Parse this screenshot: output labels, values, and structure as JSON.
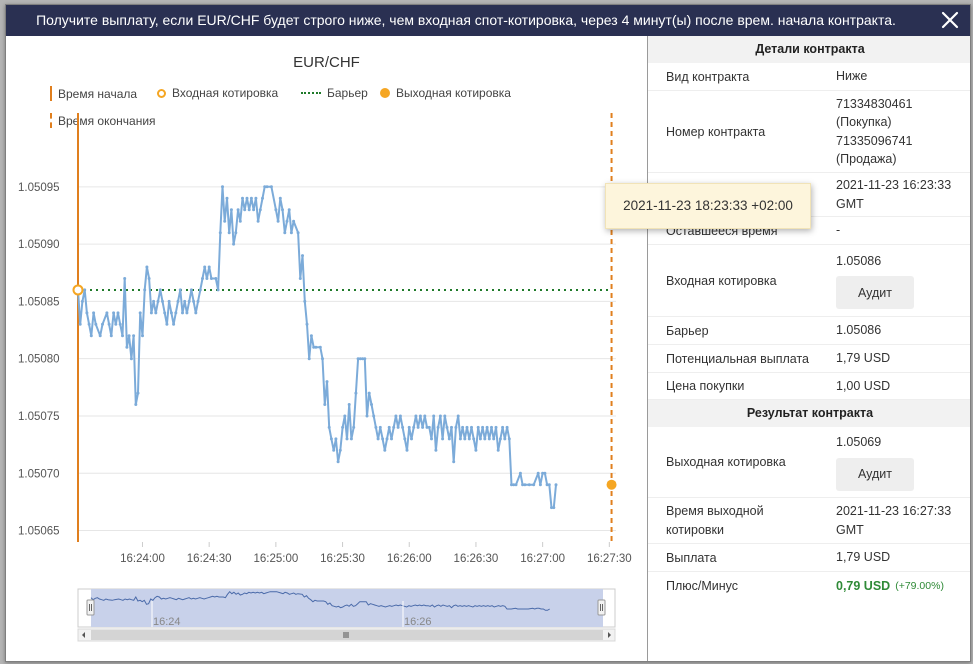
{
  "dialog": {
    "title": "Получите выплату, если EUR/CHF будет строго ниже, чем входная спот-котировка, через 4 минут(ы) после врем. начала контракта.",
    "close_icon": "close-icon"
  },
  "chart": {
    "legend": {
      "start_time": "Время начала",
      "entry_spot": "Входная котировка",
      "barrier": "Барьер",
      "exit_spot": "Выходная котировка",
      "end_time": "Время окончания"
    },
    "navigator": {
      "label_1": "16:24",
      "label_2": "16:26"
    }
  },
  "chart_data": {
    "type": "line",
    "title": "EUR/CHF",
    "xlabel": "",
    "ylabel": "",
    "x_ticks": [
      "16:24:00",
      "16:24:30",
      "16:25:00",
      "16:25:30",
      "16:26:00",
      "16:26:30",
      "16:27:00",
      "16:27:30"
    ],
    "y_ticks": [
      "1.05065",
      "1.05070",
      "1.05075",
      "1.05080",
      "1.05085",
      "1.05090",
      "1.05095"
    ],
    "xlim_seconds": [
      -29,
      213
    ],
    "ylim": [
      1.05064,
      1.05099
    ],
    "barrier": 1.05086,
    "entry_spot": 1.05086,
    "exit_spot": 1.05069,
    "start_time_seconds": -29,
    "end_time_seconds": 211,
    "series": [
      {
        "name": "EUR/CHF",
        "color": "#7cabd9",
        "points": [
          [
            -29,
            1.05086
          ],
          [
            -28,
            1.05083
          ],
          [
            -27,
            1.05085
          ],
          [
            -26,
            1.05086
          ],
          [
            -25,
            1.05084
          ],
          [
            -24,
            1.05083
          ],
          [
            -23,
            1.05082
          ],
          [
            -22,
            1.05084
          ],
          [
            -21,
            1.05083
          ],
          [
            -19,
            1.05082
          ],
          [
            -18,
            1.05083
          ],
          [
            -16,
            1.05084
          ],
          [
            -15,
            1.05083
          ],
          [
            -14,
            1.05082
          ],
          [
            -13,
            1.05084
          ],
          [
            -12,
            1.05083
          ],
          [
            -11,
            1.05084
          ],
          [
            -10,
            1.05083
          ],
          [
            -9,
            1.05082
          ],
          [
            -8,
            1.05087
          ],
          [
            -7,
            1.05081
          ],
          [
            -6,
            1.05082
          ],
          [
            -5,
            1.0508
          ],
          [
            -4,
            1.05082
          ],
          [
            -3,
            1.05076
          ],
          [
            -2,
            1.05077
          ],
          [
            -1,
            1.05084
          ],
          [
            0,
            1.05082
          ],
          [
            1,
            1.05086
          ],
          [
            2,
            1.05088
          ],
          [
            3,
            1.05087
          ],
          [
            4,
            1.05084
          ],
          [
            5,
            1.05085
          ],
          [
            6,
            1.05084
          ],
          [
            7,
            1.05085
          ],
          [
            8,
            1.05086
          ],
          [
            9,
            1.05085
          ],
          [
            10,
            1.05084
          ],
          [
            11,
            1.05083
          ],
          [
            12,
            1.05085
          ],
          [
            13,
            1.05084
          ],
          [
            14,
            1.05083
          ],
          [
            15,
            1.05084
          ],
          [
            16,
            1.05085
          ],
          [
            17,
            1.05086
          ],
          [
            18,
            1.05084
          ],
          [
            19,
            1.05085
          ],
          [
            20,
            1.05084
          ],
          [
            21,
            1.05085
          ],
          [
            22,
            1.05086
          ],
          [
            23,
            1.05085
          ],
          [
            24,
            1.05084
          ],
          [
            25,
            1.05085
          ],
          [
            26,
            1.05086
          ],
          [
            27,
            1.05087
          ],
          [
            28,
            1.05088
          ],
          [
            29,
            1.05087
          ],
          [
            30,
            1.05088
          ],
          [
            31,
            1.05087
          ],
          [
            33,
            1.05087
          ],
          [
            34,
            1.05086
          ],
          [
            35,
            1.05091
          ],
          [
            36,
            1.05095
          ],
          [
            37,
            1.05092
          ],
          [
            38,
            1.05094
          ],
          [
            39,
            1.05091
          ],
          [
            40,
            1.05093
          ],
          [
            41,
            1.0509
          ],
          [
            42,
            1.05091
          ],
          [
            43,
            1.05093
          ],
          [
            44,
            1.05092
          ],
          [
            45,
            1.05094
          ],
          [
            46,
            1.05093
          ],
          [
            47,
            1.05094
          ],
          [
            48,
            1.05093
          ],
          [
            49,
            1.05094
          ],
          [
            50,
            1.05093
          ],
          [
            51,
            1.05094
          ],
          [
            52,
            1.05092
          ],
          [
            53,
            1.05093
          ],
          [
            54,
            1.05094
          ],
          [
            55,
            1.05095
          ],
          [
            56,
            1.05095
          ],
          [
            58,
            1.05095
          ],
          [
            60,
            1.05093
          ],
          [
            61,
            1.05092
          ],
          [
            62,
            1.05094
          ],
          [
            63,
            1.05093
          ],
          [
            64,
            1.05091
          ],
          [
            65,
            1.05092
          ],
          [
            66,
            1.05093
          ],
          [
            67,
            1.05091
          ],
          [
            68,
            1.05092
          ],
          [
            70,
            1.05091
          ],
          [
            71,
            1.05087
          ],
          [
            72,
            1.05089
          ],
          [
            73,
            1.05085
          ],
          [
            74,
            1.05083
          ],
          [
            75,
            1.0508
          ],
          [
            76,
            1.05082
          ],
          [
            77,
            1.05081
          ],
          [
            78,
            1.05081
          ],
          [
            80,
            1.05081
          ],
          [
            81,
            1.0508
          ],
          [
            82,
            1.05076
          ],
          [
            83,
            1.05078
          ],
          [
            84,
            1.05074
          ],
          [
            85,
            1.05073
          ],
          [
            86,
            1.05072
          ],
          [
            87,
            1.05073
          ],
          [
            88,
            1.05071
          ],
          [
            89,
            1.05072
          ],
          [
            90,
            1.05074
          ],
          [
            91,
            1.05075
          ],
          [
            92,
            1.05073
          ],
          [
            93,
            1.05076
          ],
          [
            94,
            1.05073
          ],
          [
            95,
            1.05074
          ],
          [
            96,
            1.05077
          ],
          [
            97,
            1.0508
          ],
          [
            98,
            1.0508
          ],
          [
            99,
            1.0508
          ],
          [
            100,
            1.0508
          ],
          [
            101,
            1.05075
          ],
          [
            102,
            1.05077
          ],
          [
            103,
            1.05076
          ],
          [
            104,
            1.05075
          ],
          [
            105,
            1.05074
          ],
          [
            106,
            1.05073
          ],
          [
            107,
            1.05074
          ],
          [
            108,
            1.05073
          ],
          [
            109,
            1.05072
          ],
          [
            110,
            1.05073
          ],
          [
            111,
            1.05074
          ],
          [
            112,
            1.05073
          ],
          [
            113,
            1.05074
          ],
          [
            114,
            1.05075
          ],
          [
            115,
            1.05074
          ],
          [
            116,
            1.05075
          ],
          [
            117,
            1.05074
          ],
          [
            118,
            1.05073
          ],
          [
            119,
            1.05072
          ],
          [
            120,
            1.05074
          ],
          [
            121,
            1.05073
          ],
          [
            122,
            1.05074
          ],
          [
            123,
            1.05075
          ],
          [
            124,
            1.05074
          ],
          [
            125,
            1.05075
          ],
          [
            126,
            1.05074
          ],
          [
            127,
            1.05075
          ],
          [
            128,
            1.05074
          ],
          [
            129,
            1.05074
          ],
          [
            130,
            1.05073
          ],
          [
            131,
            1.05075
          ],
          [
            132,
            1.05072
          ],
          [
            133,
            1.05074
          ],
          [
            134,
            1.05075
          ],
          [
            135,
            1.05073
          ],
          [
            136,
            1.05075
          ],
          [
            137,
            1.05074
          ],
          [
            138,
            1.05073
          ],
          [
            139,
            1.05074
          ],
          [
            140,
            1.05071
          ],
          [
            141,
            1.05074
          ],
          [
            142,
            1.05075
          ],
          [
            143,
            1.05073
          ],
          [
            144,
            1.05074
          ],
          [
            145,
            1.05073
          ],
          [
            146,
            1.05074
          ],
          [
            147,
            1.05073
          ],
          [
            148,
            1.05074
          ],
          [
            149,
            1.05073
          ],
          [
            150,
            1.05072
          ],
          [
            151,
            1.05074
          ],
          [
            152,
            1.05073
          ],
          [
            153,
            1.05074
          ],
          [
            154,
            1.05073
          ],
          [
            155,
            1.05074
          ],
          [
            156,
            1.05073
          ],
          [
            157,
            1.05074
          ],
          [
            158,
            1.05073
          ],
          [
            159,
            1.05074
          ],
          [
            160,
            1.05072
          ],
          [
            161,
            1.05073
          ],
          [
            162,
            1.05074
          ],
          [
            163,
            1.05073
          ],
          [
            164,
            1.05074
          ],
          [
            165,
            1.05073
          ],
          [
            166,
            1.05069
          ],
          [
            167,
            1.05069
          ],
          [
            168,
            1.05069
          ],
          [
            170,
            1.0507
          ],
          [
            171,
            1.05069
          ],
          [
            172,
            1.05069
          ],
          [
            174,
            1.05069
          ],
          [
            176,
            1.05069
          ],
          [
            178,
            1.0507
          ],
          [
            179,
            1.05069
          ],
          [
            180,
            1.0507
          ],
          [
            181,
            1.0507
          ],
          [
            182,
            1.05069
          ],
          [
            183,
            1.05069
          ],
          [
            184,
            1.05067
          ],
          [
            185,
            1.05067
          ],
          [
            186,
            1.05069
          ]
        ]
      }
    ]
  },
  "tooltip": {
    "text": "2021-11-23 18:23:33 +02:00"
  },
  "details": {
    "header": "Детали контракта",
    "contract_type": {
      "label": "Вид контракта",
      "value": "Ниже"
    },
    "contract_id": {
      "label": "Номер контракта",
      "line1": "71334830461",
      "line2": "(Покупка)",
      "line3": "71335096741",
      "line4": "(Продажа)"
    },
    "start_time": {
      "value_line1": "2021-11-23 16:23:33",
      "value_line2": "GMT"
    },
    "remaining_time": {
      "label": "Оставшееся время",
      "value": "-"
    },
    "entry_spot": {
      "label": "Входная котировка",
      "value": "1.05086",
      "button": "Аудит"
    },
    "barrier": {
      "label": "Барьер",
      "value": "1.05086"
    },
    "potential_payout": {
      "label": "Потенциальная выплата",
      "value": "1,79 USD"
    },
    "purchase_price": {
      "label": "Цена покупки",
      "value": "1,00 USD"
    }
  },
  "result": {
    "header": "Результат контракта",
    "exit_spot": {
      "label": "Выходная котировка",
      "value": "1.05069",
      "button": "Аудит"
    },
    "exit_spot_time": {
      "label_line1": "Время выходной",
      "label_line2": "котировки",
      "value_line1": "2021-11-23 16:27:33",
      "value_line2": "GMT"
    },
    "payout": {
      "label": "Выплата",
      "value": "1,79 USD"
    },
    "profit_loss": {
      "label": "Плюс/Минус",
      "value": "0,79 USD",
      "percent": "(+79.00%)"
    }
  }
}
